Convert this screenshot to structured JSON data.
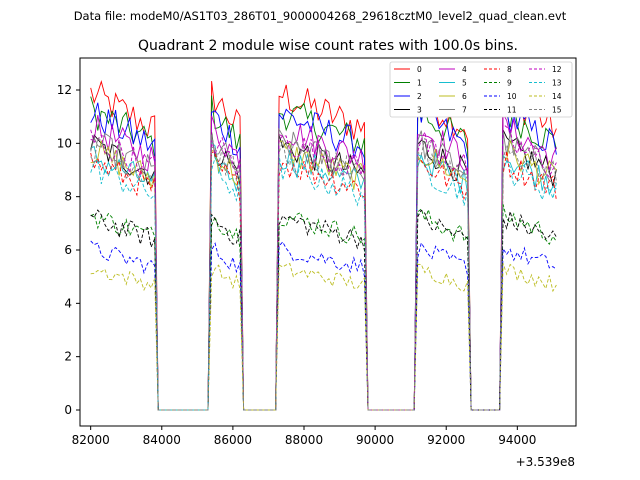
{
  "chart_data": {
    "type": "line",
    "suptitle": "Data file: modeM0/AS1T03_286T01_9000004268_29618cztM0_level2_quad_clean.evt",
    "title": "Quadrant 2 module wise count rates with 100.0s bins.",
    "xlabel": "",
    "ylabel": "",
    "x_offset_label": "+3.539e8",
    "xlim": [
      81700,
      95650
    ],
    "ylim": [
      -0.6,
      13.2
    ],
    "xticks": [
      82000,
      84000,
      86000,
      88000,
      90000,
      92000,
      94000
    ],
    "yticks": [
      0,
      2,
      4,
      6,
      8,
      10,
      12
    ],
    "legend_loc": "upper right",
    "segments": [
      {
        "start": 82000,
        "end": 83800
      },
      {
        "start": 85400,
        "end": 86200
      },
      {
        "start": 87300,
        "end": 89700
      },
      {
        "start": 91200,
        "end": 92600
      },
      {
        "start": 93600,
        "end": 95100
      }
    ],
    "drop_edges": [
      83900,
      85300,
      86300,
      87200,
      89800,
      91100,
      92700,
      93500
    ],
    "gap_level": 0,
    "series": [
      {
        "name": "0",
        "color": "#ff0000",
        "dash": "solid",
        "level": 11.2
      },
      {
        "name": "1",
        "color": "#008000",
        "dash": "solid",
        "level": 10.6
      },
      {
        "name": "2",
        "color": "#0000ff",
        "dash": "solid",
        "level": 10.5
      },
      {
        "name": "3",
        "color": "#000000",
        "dash": "solid",
        "level": 9.4
      },
      {
        "name": "4",
        "color": "#bf00bf",
        "dash": "solid",
        "level": 10.0
      },
      {
        "name": "5",
        "color": "#17becf",
        "dash": "solid",
        "level": 9.0
      },
      {
        "name": "6",
        "color": "#bcbd22",
        "dash": "solid",
        "level": 9.2
      },
      {
        "name": "7",
        "color": "#7f7f7f",
        "dash": "solid",
        "level": 9.5
      },
      {
        "name": "8",
        "color": "#ff0000",
        "dash": "dashed",
        "level": 8.8
      },
      {
        "name": "9",
        "color": "#008000",
        "dash": "dashed",
        "level": 6.9
      },
      {
        "name": "10",
        "color": "#0000ff",
        "dash": "dashed",
        "level": 5.7
      },
      {
        "name": "11",
        "color": "#000000",
        "dash": "dashed",
        "level": 6.8
      },
      {
        "name": "12",
        "color": "#bf00bf",
        "dash": "dashed",
        "level": 9.6
      },
      {
        "name": "13",
        "color": "#17becf",
        "dash": "dashed",
        "level": 8.6
      },
      {
        "name": "14",
        "color": "#bcbd22",
        "dash": "dashed",
        "level": 5.0
      },
      {
        "name": "15",
        "color": "#7f7f7f",
        "dash": "dashed",
        "level": 9.3
      }
    ]
  }
}
